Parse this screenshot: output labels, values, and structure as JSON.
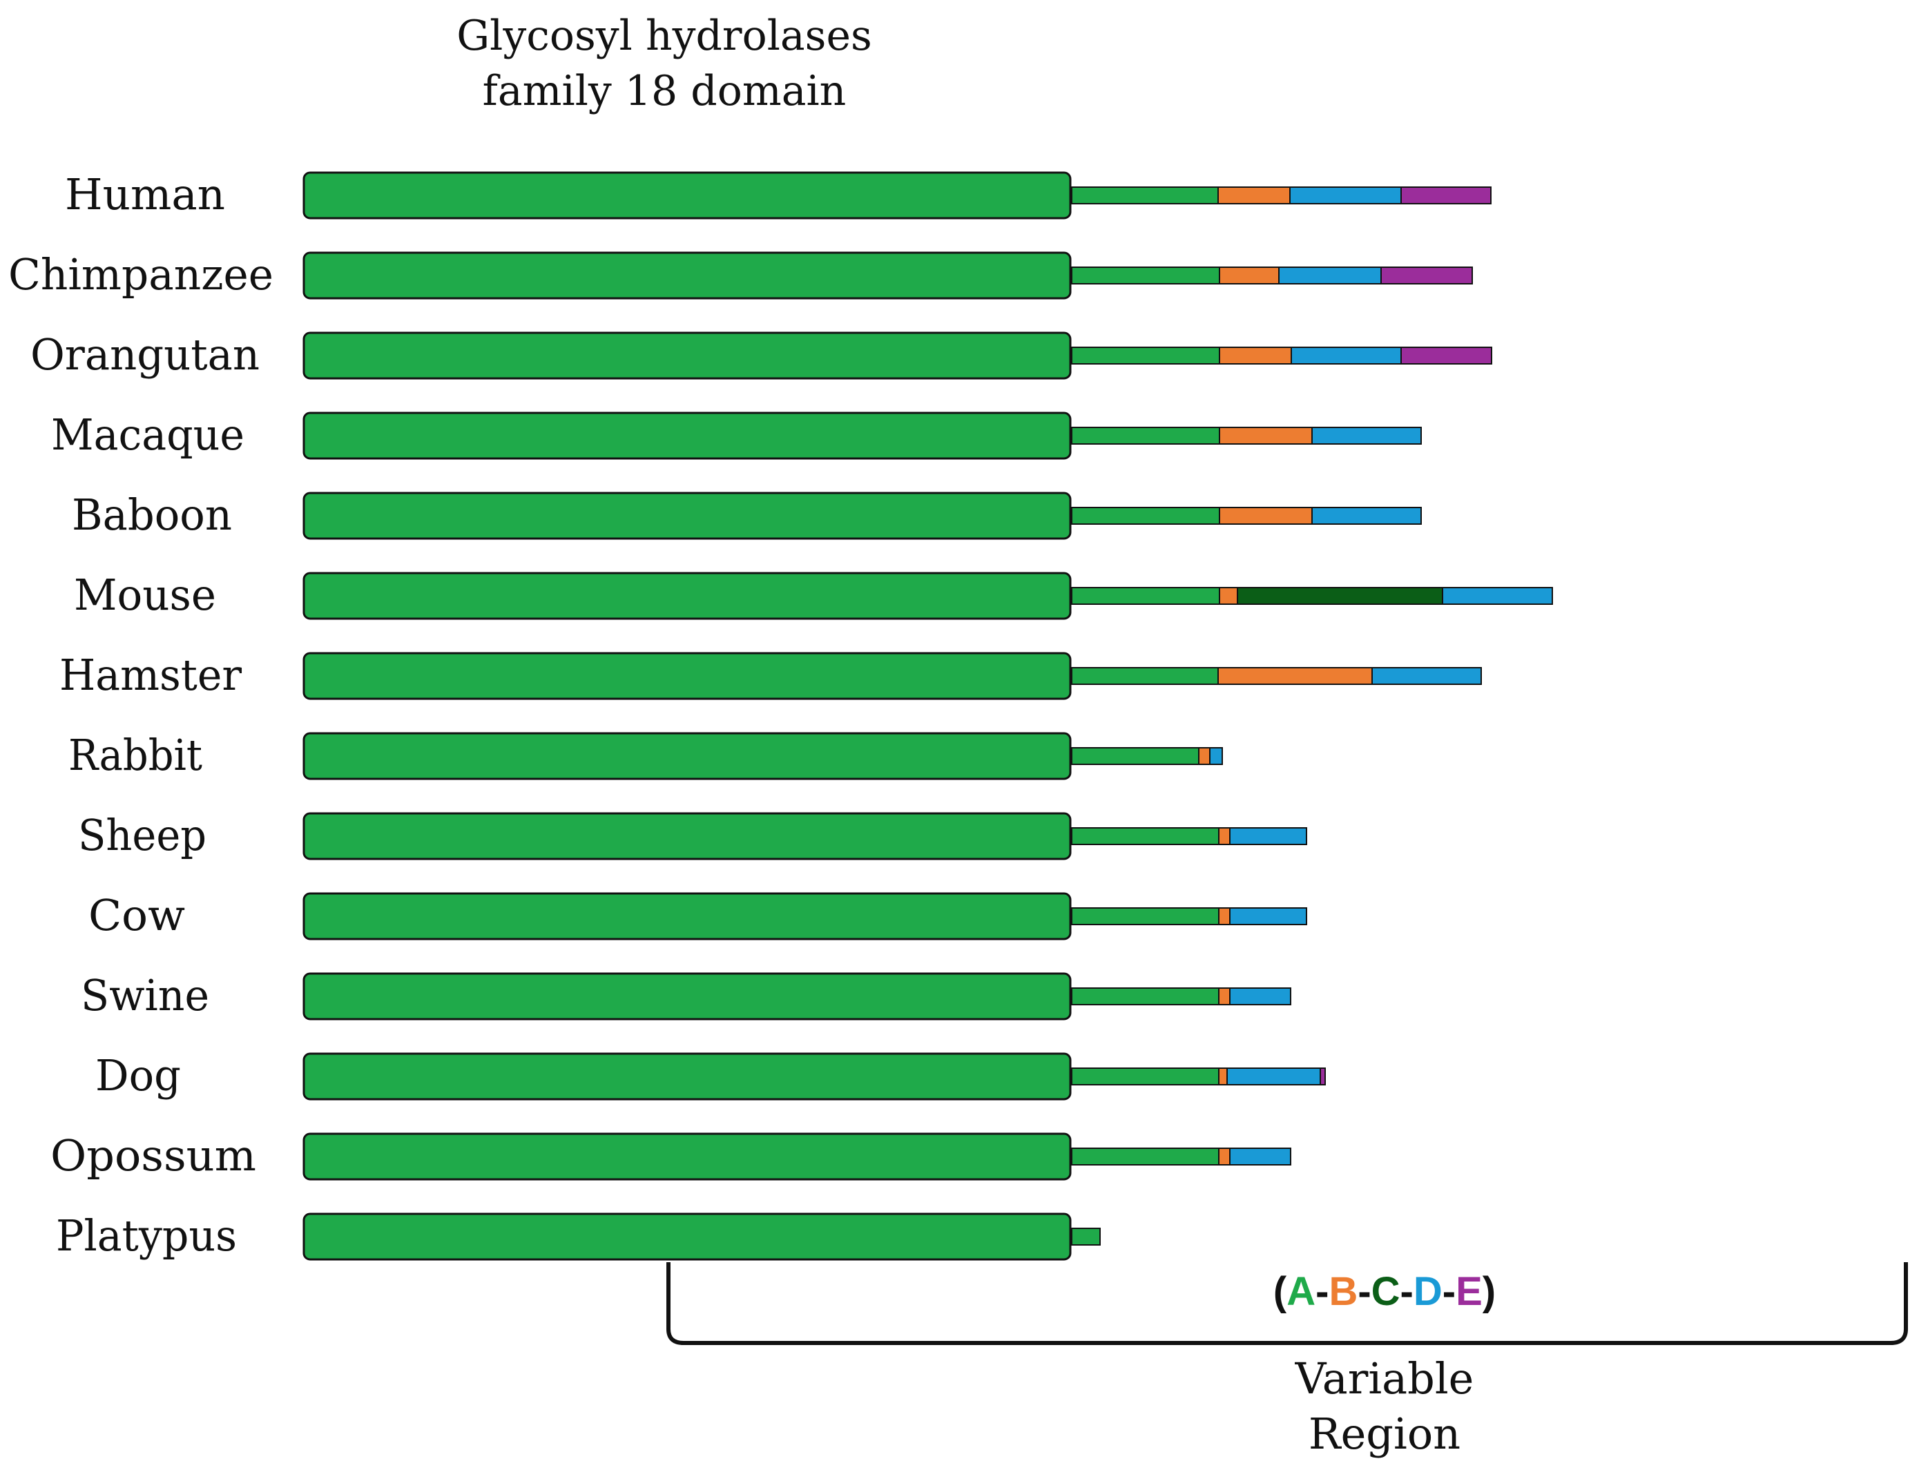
{
  "title": {
    "line1": "Glycosyl hydrolases",
    "line2": "family 18 domain"
  },
  "legend": {
    "open": "(",
    "close": ")",
    "dash": "-",
    "parts": [
      {
        "letter": "A",
        "color": "#1faa4a"
      },
      {
        "letter": "B",
        "color": "#ed7d31"
      },
      {
        "letter": "C",
        "color": "#0b5e17"
      },
      {
        "letter": "D",
        "color": "#1a9ad6"
      },
      {
        "letter": "E",
        "color": "#9b2d9b"
      }
    ]
  },
  "region_label": {
    "line1": "Variable",
    "line2": "Region"
  },
  "colors": {
    "domain": "#1faa4a",
    "A": "#1faa4a",
    "B": "#ed7d31",
    "C": "#0b5e17",
    "D": "#1a9ad6",
    "E": "#9b2d9b",
    "outline": "#111111"
  },
  "species": [
    {
      "name": "Human",
      "segments": [
        [
          "A",
          212
        ],
        [
          "B",
          104
        ],
        [
          "D",
          161
        ],
        [
          "E",
          130
        ]
      ]
    },
    {
      "name": "Chimpanzee",
      "segments": [
        [
          "A",
          214
        ],
        [
          "B",
          86
        ],
        [
          "D",
          148
        ],
        [
          "E",
          132
        ]
      ]
    },
    {
      "name": "Orangutan",
      "segments": [
        [
          "A",
          214
        ],
        [
          "B",
          104
        ],
        [
          "D",
          159
        ],
        [
          "E",
          131
        ]
      ]
    },
    {
      "name": "Macaque",
      "segments": [
        [
          "A",
          214
        ],
        [
          "B",
          134
        ],
        [
          "D",
          158
        ]
      ]
    },
    {
      "name": "Baboon",
      "segments": [
        [
          "A",
          214
        ],
        [
          "B",
          134
        ],
        [
          "D",
          158
        ]
      ]
    },
    {
      "name": "Mouse",
      "segments": [
        [
          "A",
          214
        ],
        [
          "B",
          26
        ],
        [
          "C",
          297
        ],
        [
          "D",
          159
        ]
      ]
    },
    {
      "name": "Hamster",
      "segments": [
        [
          "A",
          212
        ],
        [
          "B",
          223
        ],
        [
          "D",
          158
        ]
      ]
    },
    {
      "name": "Rabbit",
      "segments": [
        [
          "A",
          184
        ],
        [
          "B",
          16
        ],
        [
          "D",
          18
        ]
      ]
    },
    {
      "name": "Sheep",
      "segments": [
        [
          "A",
          213
        ],
        [
          "B",
          16
        ],
        [
          "D",
          111
        ]
      ]
    },
    {
      "name": "Cow",
      "segments": [
        [
          "A",
          213
        ],
        [
          "B",
          16
        ],
        [
          "D",
          111
        ]
      ]
    },
    {
      "name": "Swine",
      "segments": [
        [
          "A",
          213
        ],
        [
          "B",
          16
        ],
        [
          "D",
          88
        ]
      ]
    },
    {
      "name": "Dog",
      "segments": [
        [
          "A",
          213
        ],
        [
          "B",
          12
        ],
        [
          "D",
          135
        ],
        [
          "E",
          7
        ]
      ]
    },
    {
      "name": "Opossum",
      "segments": [
        [
          "A",
          213
        ],
        [
          "B",
          16
        ],
        [
          "D",
          88
        ]
      ]
    },
    {
      "name": "Platypus",
      "segments": [
        [
          "A",
          41
        ]
      ]
    }
  ]
}
